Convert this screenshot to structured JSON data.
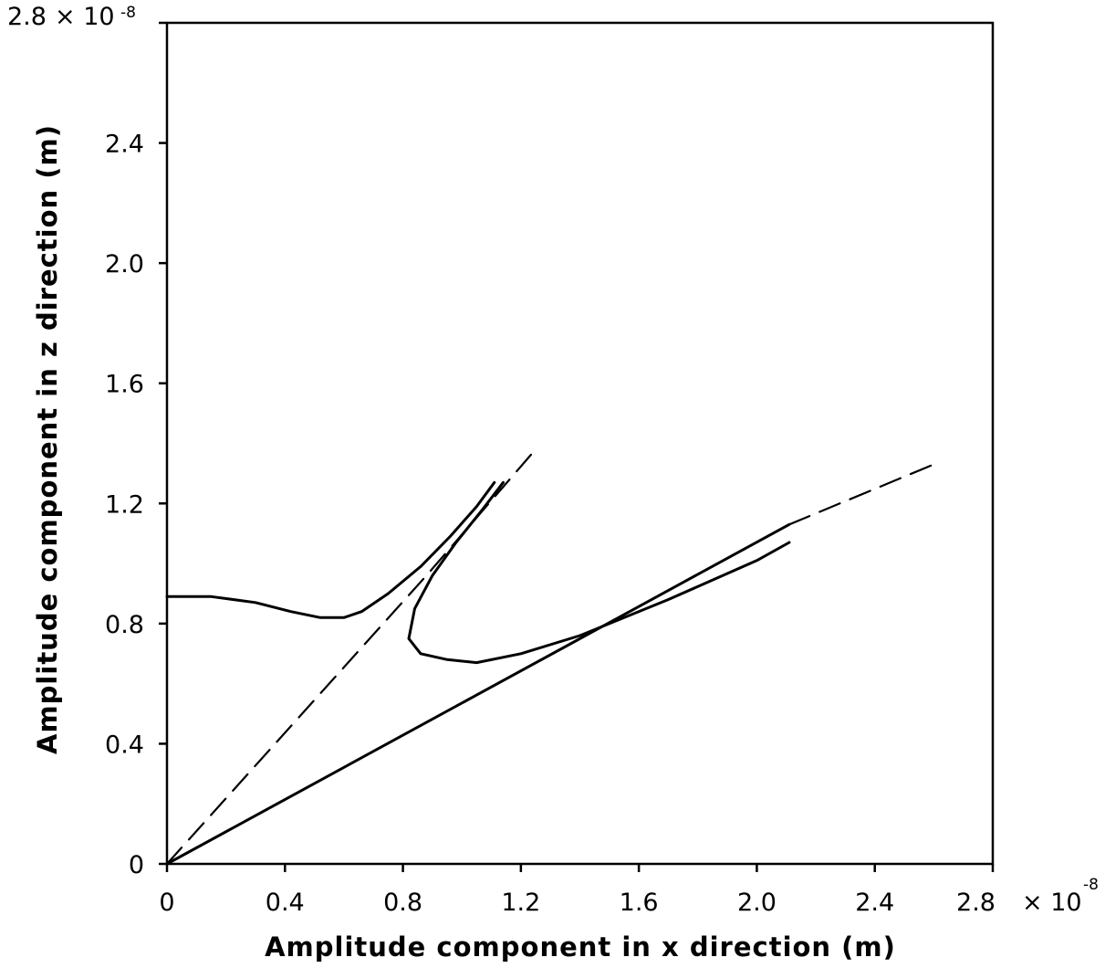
{
  "chart_data": {
    "type": "line",
    "title": "",
    "xlabel": "Amplitude  component in x direction (m)",
    "ylabel": "Amplitude  component in z direction (m)",
    "xlim": [
      0,
      2.8
    ],
    "ylim": [
      0,
      2.8
    ],
    "scale_factor_label": {
      "prefix": "× 10",
      "exponent": "-8"
    },
    "x_ticks": [
      {
        "value": 0,
        "label": "0"
      },
      {
        "value": 0.4,
        "label": "0.4"
      },
      {
        "value": 0.8,
        "label": "0.8"
      },
      {
        "value": 1.2,
        "label": "1.2"
      },
      {
        "value": 1.6,
        "label": "1.6"
      },
      {
        "value": 2.0,
        "label": "2.0"
      },
      {
        "value": 2.4,
        "label": "2.4"
      },
      {
        "value": 2.8,
        "label": "2.8"
      }
    ],
    "y_ticks": [
      {
        "value": 0,
        "label": "0"
      },
      {
        "value": 0.4,
        "label": "0.4"
      },
      {
        "value": 0.8,
        "label": "0.8"
      },
      {
        "value": 1.2,
        "label": "1.2"
      },
      {
        "value": 1.6,
        "label": "1.6"
      },
      {
        "value": 2.0,
        "label": "2.0"
      },
      {
        "value": 2.4,
        "label": "2.4"
      },
      {
        "value": 2.8,
        "label": "2.8"
      }
    ],
    "grid": false,
    "legend": "none",
    "series": [
      {
        "style": "solid",
        "x": [
          0,
          2.11
        ],
        "y": [
          0,
          1.13
        ]
      },
      {
        "style": "dashed",
        "x": [
          2.11,
          2.6
        ],
        "y": [
          1.13,
          1.33
        ]
      },
      {
        "style": "dashed",
        "x": [
          0,
          0.88,
          1.25
        ],
        "y": [
          0,
          0.96,
          1.38
        ]
      },
      {
        "style": "solid",
        "x": [
          0,
          0.15,
          0.3,
          0.42,
          0.52,
          0.6,
          0.66,
          0.75,
          0.86,
          0.96,
          1.05,
          1.11
        ],
        "y": [
          0.89,
          0.89,
          0.87,
          0.84,
          0.82,
          0.82,
          0.84,
          0.9,
          0.99,
          1.09,
          1.19,
          1.27
        ]
      },
      {
        "style": "solid",
        "x": [
          1.14,
          1.07,
          0.98,
          0.9,
          0.84,
          0.82,
          0.86,
          0.95,
          1.05,
          1.2,
          1.4,
          1.7,
          2.0,
          2.11
        ],
        "y": [
          1.27,
          1.18,
          1.07,
          0.96,
          0.85,
          0.75,
          0.7,
          0.68,
          0.67,
          0.7,
          0.76,
          0.88,
          1.01,
          1.07
        ]
      }
    ]
  }
}
